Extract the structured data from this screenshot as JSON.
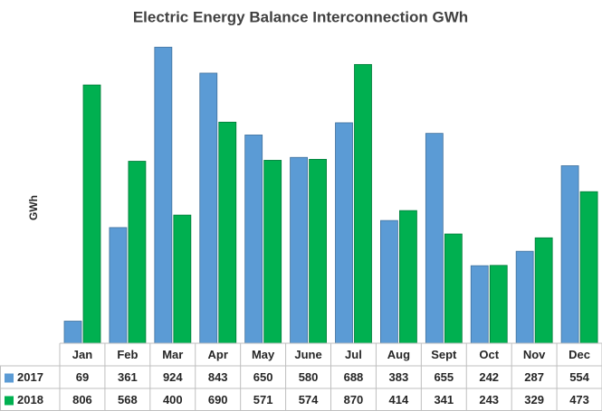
{
  "chart_data": {
    "type": "bar",
    "title": "Electric Energy Balance Interconnection GWh",
    "y_label": "GWh",
    "categories": [
      "Jan",
      "Feb",
      "Mar",
      "Apr",
      "May",
      "June",
      "Jul",
      "Aug",
      "Sept",
      "Oct",
      "Nov",
      "Dec"
    ],
    "series": [
      {
        "name": "2017",
        "color": "#5b9bd5",
        "values": [
          69,
          361,
          924,
          843,
          650,
          580,
          688,
          383,
          655,
          242,
          287,
          554
        ]
      },
      {
        "name": "2018",
        "color": "#00b050",
        "values": [
          806,
          568,
          400,
          690,
          571,
          574,
          870,
          414,
          341,
          243,
          329,
          473
        ]
      }
    ],
    "ylim": [
      0,
      950
    ]
  }
}
